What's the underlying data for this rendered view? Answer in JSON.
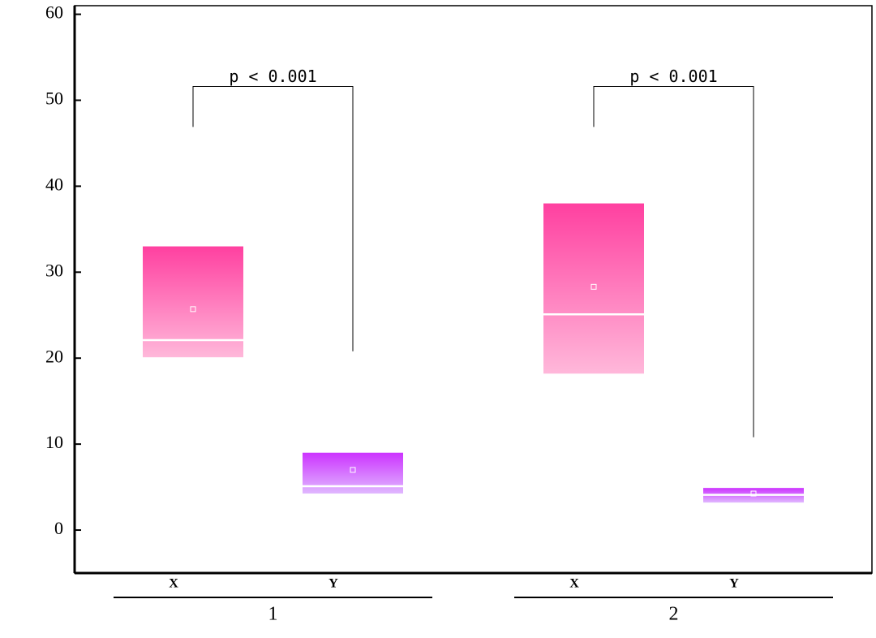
{
  "chart_data": {
    "type": "box",
    "categories": [
      "X",
      "Y",
      "X",
      "Y"
    ],
    "groups": [
      "1",
      "2"
    ],
    "q1": [
      20.1,
      4.25,
      18.2,
      3.2
    ],
    "median": [
      22.1,
      5.1,
      25.1,
      4.1
    ],
    "q3": [
      33.0,
      9.0,
      38.0,
      4.9
    ],
    "mean": [
      25.7,
      7.0,
      28.3,
      4.25
    ],
    "colors": [
      [
        "#ff40a0",
        "#ffb8da"
      ],
      [
        "#cc33ff",
        "#e0b8ff"
      ],
      [
        "#ff40a0",
        "#ffb8da"
      ],
      [
        "#cc33ff",
        "#e0b8ff"
      ]
    ],
    "ylim": [
      -5,
      61
    ],
    "yticks": [
      0,
      10,
      20,
      30,
      40,
      50,
      60
    ],
    "annotations": [
      {
        "text": "p < 0.001",
        "from": 0,
        "to": 1,
        "y": 51.6,
        "y_left": 46.9,
        "y_right": 20.8
      },
      {
        "text": "p < 0.001",
        "from": 2,
        "to": 3,
        "y": 51.6,
        "y_left": 46.9,
        "y_right": 10.8
      }
    ]
  }
}
